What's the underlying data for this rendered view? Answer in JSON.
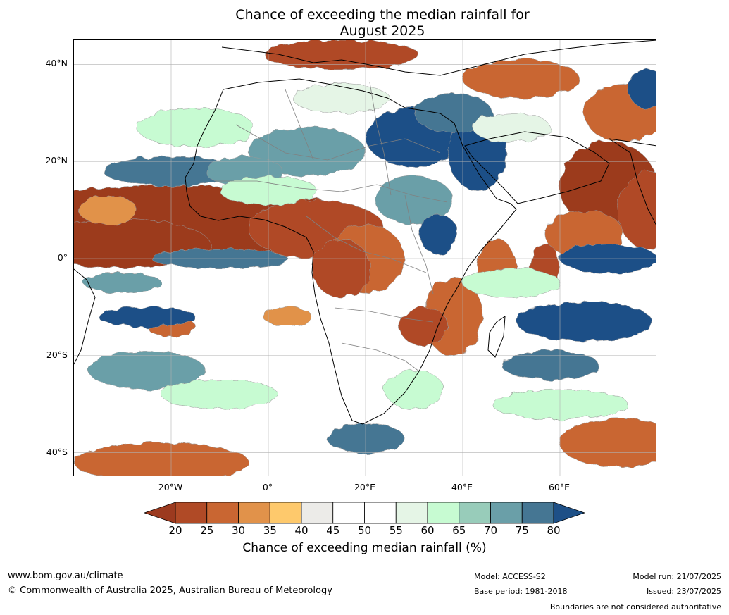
{
  "title_line1": "Chance of exceeding the median rainfall for",
  "title_line2": "August 2025",
  "map": {
    "lat_labels": [
      "40°N",
      "20°N",
      "0°",
      "20°S",
      "40°S"
    ],
    "lat_values": [
      40,
      20,
      0,
      -20,
      -40
    ],
    "lon_labels": [
      "20°W",
      "0°",
      "20°E",
      "40°E",
      "60°E"
    ],
    "lon_values": [
      -20,
      0,
      20,
      40,
      60
    ],
    "lon_range": [
      -40,
      80
    ],
    "lat_range": [
      -45,
      45
    ],
    "features": [
      {
        "kind": "blob",
        "lon": -20,
        "lat": 7,
        "w": 40,
        "h": 8,
        "value": 18
      },
      {
        "kind": "blob",
        "lon": -30,
        "lat": 3,
        "w": 18,
        "h": 5,
        "value": 18
      },
      {
        "kind": "blob",
        "lon": 10,
        "lat": 6,
        "w": 14,
        "h": 6,
        "value": 20
      },
      {
        "kind": "blob",
        "lon": 20,
        "lat": 0,
        "w": 8,
        "h": 7,
        "value": 25
      },
      {
        "kind": "blob",
        "lon": 15,
        "lat": -2,
        "w": 6,
        "h": 6,
        "value": 22
      },
      {
        "kind": "blob",
        "lon": 70,
        "lat": 15,
        "w": 10,
        "h": 9,
        "value": 18
      },
      {
        "kind": "blob",
        "lon": 65,
        "lat": 5,
        "w": 8,
        "h": 5,
        "value": 25
      },
      {
        "kind": "blob",
        "lon": 78,
        "lat": 10,
        "w": 6,
        "h": 8,
        "value": 22
      },
      {
        "kind": "blob",
        "lon": 38,
        "lat": -12,
        "w": 6,
        "h": 8,
        "value": 25
      },
      {
        "kind": "blob",
        "lon": 32,
        "lat": -14,
        "w": 5,
        "h": 4,
        "value": 22
      },
      {
        "kind": "blob",
        "lon": 47,
        "lat": -2,
        "w": 4,
        "h": 6,
        "value": 25
      },
      {
        "kind": "blob",
        "lon": 57,
        "lat": -2,
        "w": 3,
        "h": 5,
        "value": 22
      },
      {
        "kind": "blob",
        "lon": 15,
        "lat": 42,
        "w": 16,
        "h": 3,
        "value": 22
      },
      {
        "kind": "blob",
        "lon": 52,
        "lat": 37,
        "w": 12,
        "h": 4,
        "value": 28
      },
      {
        "kind": "blob",
        "lon": 73,
        "lat": 30,
        "w": 8,
        "h": 6,
        "value": 25
      },
      {
        "kind": "blob",
        "lon": -22,
        "lat": -42,
        "w": 18,
        "h": 4,
        "value": 28
      },
      {
        "kind": "blob",
        "lon": 72,
        "lat": -38,
        "w": 12,
        "h": 5,
        "value": 28
      },
      {
        "kind": "blob",
        "lon": -20,
        "lat": -14,
        "w": 5,
        "h": 2,
        "value": 25
      },
      {
        "kind": "blob",
        "lon": 4,
        "lat": -12,
        "w": 5,
        "h": 2,
        "value": 30
      },
      {
        "kind": "blob",
        "lon": -33,
        "lat": 10,
        "w": 6,
        "h": 3,
        "value": 30
      },
      {
        "kind": "blob",
        "lon": 30,
        "lat": 25,
        "w": 10,
        "h": 6,
        "value": 80
      },
      {
        "kind": "blob",
        "lon": 43,
        "lat": 22,
        "w": 6,
        "h": 8,
        "value": 80
      },
      {
        "kind": "blob",
        "lon": 8,
        "lat": 22,
        "w": 12,
        "h": 5,
        "value": 72
      },
      {
        "kind": "blob",
        "lon": 38,
        "lat": 30,
        "w": 8,
        "h": 4,
        "value": 75
      },
      {
        "kind": "blob",
        "lon": 30,
        "lat": 12,
        "w": 8,
        "h": 5,
        "value": 70
      },
      {
        "kind": "blob",
        "lon": -20,
        "lat": 18,
        "w": 14,
        "h": 3,
        "value": 75
      },
      {
        "kind": "blob",
        "lon": -5,
        "lat": 18,
        "w": 8,
        "h": 3,
        "value": 70
      },
      {
        "kind": "blob",
        "lon": -10,
        "lat": 0,
        "w": 14,
        "h": 2,
        "value": 75
      },
      {
        "kind": "blob",
        "lon": -30,
        "lat": -5,
        "w": 8,
        "h": 2,
        "value": 72
      },
      {
        "kind": "blob",
        "lon": -25,
        "lat": -12,
        "w": 10,
        "h": 2,
        "value": 80
      },
      {
        "kind": "blob",
        "lon": 70,
        "lat": 0,
        "w": 10,
        "h": 3,
        "value": 80
      },
      {
        "kind": "blob",
        "lon": 65,
        "lat": -13,
        "w": 14,
        "h": 4,
        "value": 80
      },
      {
        "kind": "blob",
        "lon": 58,
        "lat": -22,
        "w": 10,
        "h": 3,
        "value": 75
      },
      {
        "kind": "blob",
        "lon": -25,
        "lat": -23,
        "w": 12,
        "h": 4,
        "value": 72
      },
      {
        "kind": "blob",
        "lon": 20,
        "lat": -37,
        "w": 8,
        "h": 3,
        "value": 75
      },
      {
        "kind": "blob",
        "lon": 78,
        "lat": 35,
        "w": 4,
        "h": 4,
        "value": 80
      },
      {
        "kind": "blob",
        "lon": 35,
        "lat": 5,
        "w": 4,
        "h": 4,
        "value": 80
      },
      {
        "kind": "blob",
        "lon": -15,
        "lat": 27,
        "w": 12,
        "h": 4,
        "value": 62
      },
      {
        "kind": "blob",
        "lon": 0,
        "lat": 14,
        "w": 10,
        "h": 3,
        "value": 62
      },
      {
        "kind": "blob",
        "lon": 30,
        "lat": -27,
        "w": 6,
        "h": 4,
        "value": 62
      },
      {
        "kind": "blob",
        "lon": 50,
        "lat": -5,
        "w": 10,
        "h": 3,
        "value": 62
      },
      {
        "kind": "blob",
        "lon": -10,
        "lat": -28,
        "w": 12,
        "h": 3,
        "value": 62
      },
      {
        "kind": "blob",
        "lon": 60,
        "lat": -30,
        "w": 14,
        "h": 3,
        "value": 62
      },
      {
        "kind": "blob",
        "lon": 15,
        "lat": 33,
        "w": 10,
        "h": 3,
        "value": 57
      },
      {
        "kind": "blob",
        "lon": 50,
        "lat": 27,
        "w": 8,
        "h": 3,
        "value": 57
      }
    ],
    "colors": {
      "land_outline": "#000000",
      "border": "#888888",
      "grid": "#b0b0b0",
      "contour": "#999999"
    }
  },
  "colorbar": {
    "ticks": [
      "20",
      "25",
      "30",
      "35",
      "40",
      "45",
      "50",
      "55",
      "60",
      "65",
      "70",
      "75",
      "80"
    ],
    "colors": [
      "#9c3a1f",
      "#b04a26",
      "#c96632",
      "#e1924a",
      "#fec96c",
      "#ecebe8",
      "#ffffff",
      "#ffffff",
      "#e5f5e6",
      "#c7fbd2",
      "#98ccba",
      "#6a9fa8",
      "#457693",
      "#1e5087"
    ],
    "label": "Chance of exceeding median rainfall (%)"
  },
  "footer": {
    "website": "www.bom.gov.au/climate",
    "copyright": "© Commonwealth of Australia 2025, Australian Bureau of Meteorology",
    "model": "Model: ACCESS-S2",
    "base_period": "Base period: 1981-2018",
    "model_run": "Model run: 21/07/2025",
    "issued": "Issued: 23/07/2025",
    "disclaimer": "Boundaries are not considered authoritative"
  }
}
